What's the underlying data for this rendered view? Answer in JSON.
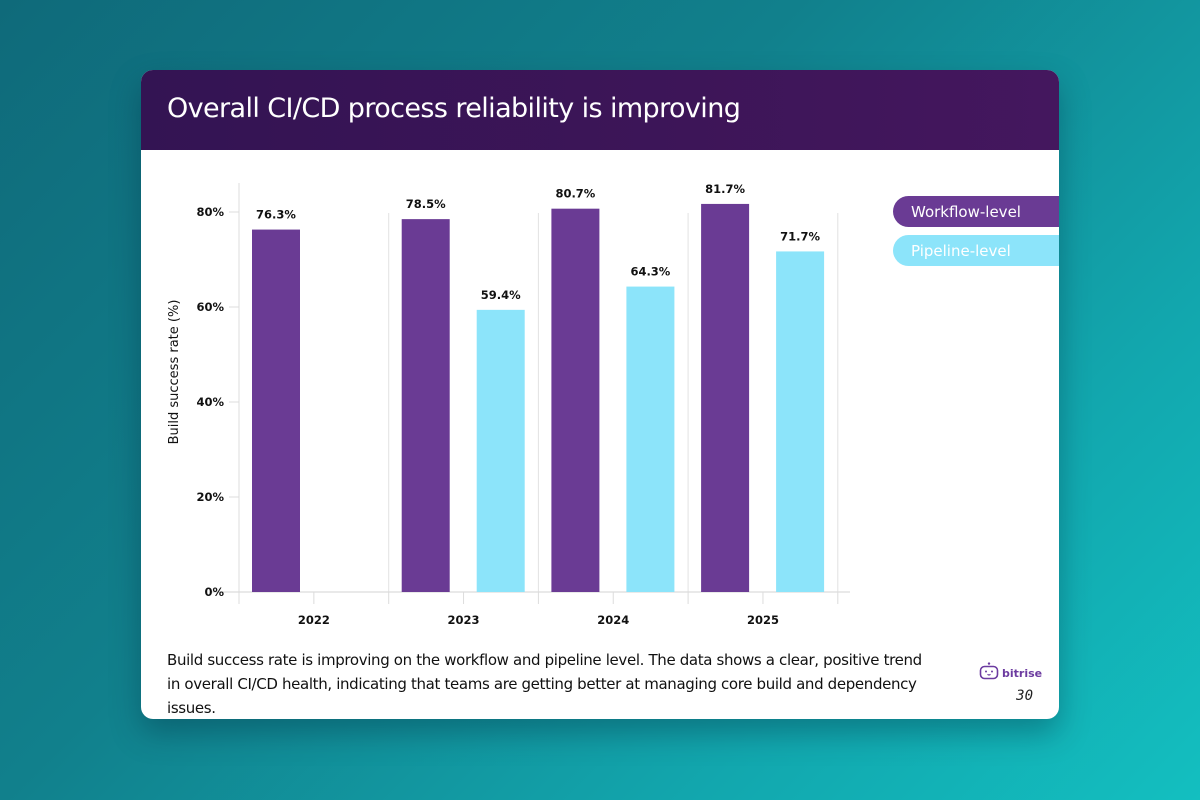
{
  "slide": {
    "title": "Overall CI/CD process reliability is improving",
    "caption": "Build success rate is improving on the workflow and pipeline level. The data shows a clear, positive trend in overall CI/CD health, indicating that teams are getting better at managing core build and dependency issues.",
    "brand": {
      "icon": "bitrise-robot-icon",
      "name": "bitrise"
    },
    "page_number": "30"
  },
  "colors": {
    "workflow": "#6a3b94",
    "pipeline": "#8ce4fa",
    "header": "#3a1556",
    "brand": "#6c3ba0"
  },
  "chart_data": {
    "type": "bar",
    "title": "Overall CI/CD process reliability is improving",
    "xlabel": "",
    "ylabel": "Build success rate (%)",
    "ylim": [
      0,
      80
    ],
    "yticks": [
      0,
      20,
      40,
      60,
      80
    ],
    "ytick_labels": [
      "0%",
      "20%",
      "40%",
      "60%",
      "80%"
    ],
    "categories": [
      "2022",
      "2023",
      "2024",
      "2025"
    ],
    "series": [
      {
        "name": "Workflow-level",
        "color": "#6a3b94",
        "values": [
          76.3,
          78.5,
          80.7,
          81.7
        ],
        "labels": [
          "76.3%",
          "78.5%",
          "80.7%",
          "81.7%"
        ]
      },
      {
        "name": "Pipeline-level",
        "color": "#8ce4fa",
        "values": [
          null,
          59.4,
          64.3,
          71.7
        ],
        "labels": [
          null,
          "59.4%",
          "64.3%",
          "71.7%"
        ]
      }
    ],
    "legend_position": "top-right",
    "grid": "vertical separators between categories"
  }
}
